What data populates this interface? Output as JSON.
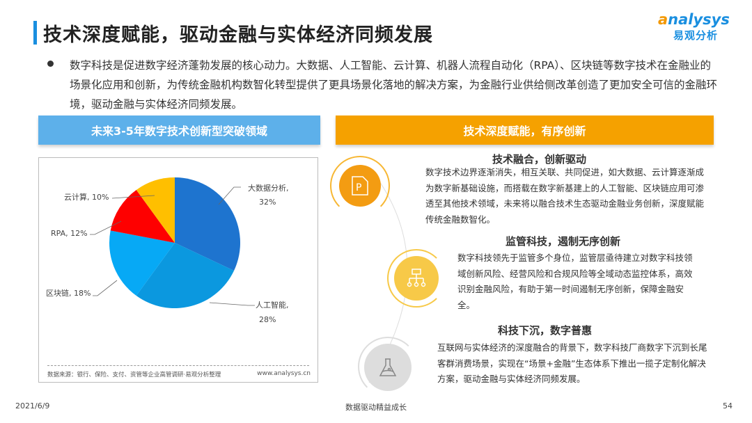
{
  "title": "技术深度赋能，驱动金融与实体经济同频发展",
  "logo": {
    "en": "analysys",
    "cn": "易观分析"
  },
  "bullet": "数字科技是促进数字经济蓬勃发展的核心动力。大数据、人工智能、云计算、机器人流程自动化（RPA）、区块链等数字技术在金融业的场景化应用和创新，为传统金融机构数智化转型提供了更具场景化落地的解决方案，为金融行业供给侧改革创造了更加安全可信的金融环境，驱动金融与实体经济同频发展。",
  "left_header": "未来3-5年数字技术创新型突破领域",
  "right_header": "技术深度赋能，有序创新",
  "chart_data": {
    "type": "pie",
    "categories": [
      "大数据分析",
      "人工智能",
      "区块链",
      "RPA",
      "云计算"
    ],
    "values": [
      32,
      28,
      18,
      12,
      10
    ],
    "labels": [
      "大数据分析,",
      "32%",
      "人工智能,",
      "28%",
      "区块链, 18%",
      "RPA, 12%",
      "云计算, 10%"
    ],
    "colors": [
      "#1e74cf",
      "#0b98df",
      "#07a9f5",
      "#fe0000",
      "#ffbf00"
    ],
    "start": "top",
    "direction": "clockwise"
  },
  "chart_source": "数据来源：银行、保险、支付、资管等企业高管调研·易观分析整理",
  "chart_site": "www.analysys.cn",
  "sections": [
    {
      "title": "技术融合，创新驱动",
      "icon": "document-p-icon",
      "body": "数字技术边界逐渐消失，相互关联、共同促进，如大数据、云计算逐渐成为数字新基础设施，而搭载在数字新基建上的人工智能、区块链应用可渗透至其他技术领域，未来将以融合技术生态驱动金融业务创新，深度赋能传统金融数智化。"
    },
    {
      "title": "监管科技，遏制无序创新",
      "icon": "hierarchy-icon",
      "body": "数字科技领先于监管多个身位，监管层亟待建立对数字科技领域创新风险、经营风险和合规风险等全域动态监控体系，高效识别金融风险，有助于第一时间遏制无序创新，保障金融安全。"
    },
    {
      "title": "科技下沉，数字普惠",
      "icon": "flask-icon",
      "body": "互联网与实体经济的深度融合的背景下，数字科技厂商数字下沉到长尾客群消费场景，实现在“场景+金融”生态体系下推出一揽子定制化解决方案，驱动金融与实体经济同频发展。"
    }
  ],
  "footer": {
    "date": "2021/6/9",
    "center": "数据驱动精益成长",
    "page": "54"
  }
}
